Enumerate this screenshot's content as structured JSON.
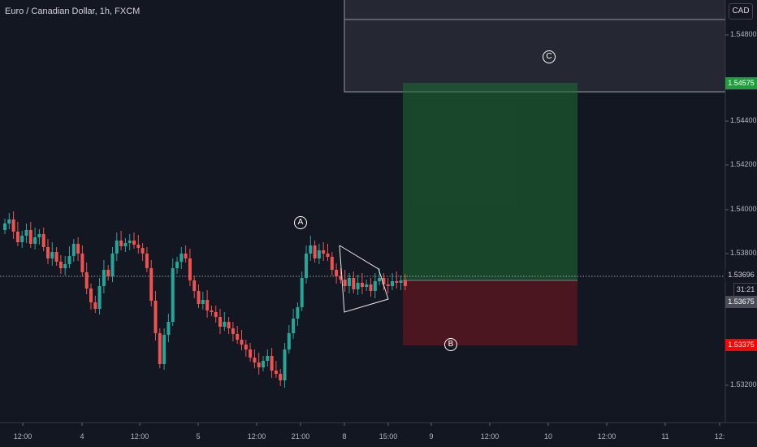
{
  "header": {
    "symbol_title": "Euro / Canadian Dollar, 1h, FXCM",
    "currency": "CAD"
  },
  "price_scale": {
    "ticks": [
      "1.54800",
      "1.54400",
      "1.54200",
      "1.54000",
      "1.53800",
      "1.53200"
    ],
    "tags": {
      "target": "1.54575",
      "current": "1.53696",
      "entry": "1.53675",
      "stop": "1.53375"
    },
    "countdown": "31:21"
  },
  "time_axis": {
    "labels": [
      "12:00",
      "4",
      "12:00",
      "5",
      "12:00",
      "21:00",
      "8",
      "15:00",
      "9",
      "12:00",
      "10",
      "12:00",
      "11",
      "12:"
    ]
  },
  "annotations": {
    "a": "A",
    "b": "B",
    "c": "C"
  },
  "colors": {
    "background": "#131722",
    "up_candle": "#26a69a",
    "down_candle": "#ef5350",
    "profit_zone": "rgba(38,120,56,0.55)",
    "loss_zone": "rgba(120,28,34,0.6)",
    "target_tag": "#1e9f3c",
    "stop_tag": "#ff0000"
  }
}
